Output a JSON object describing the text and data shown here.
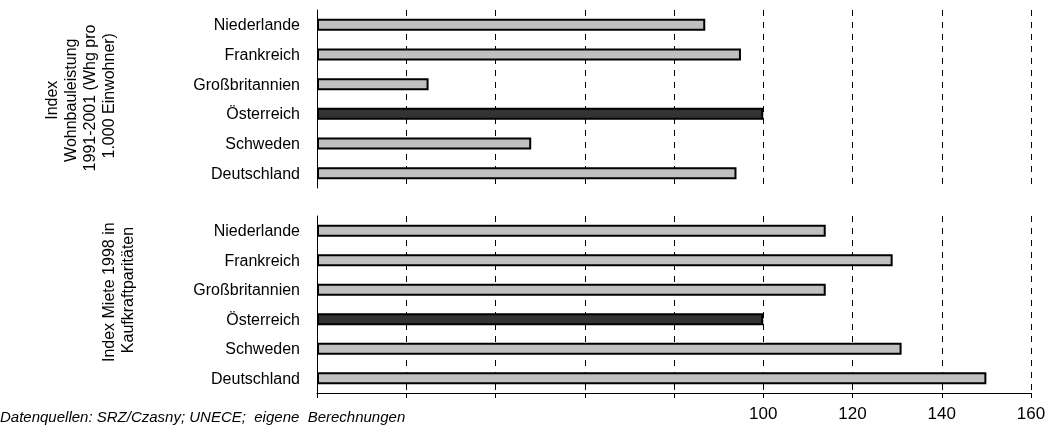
{
  "chart_data": [
    {
      "type": "bar",
      "orientation": "horizontal",
      "ylabel": "Index Wohnbauleistung 1991-2001 (Whg pro 1.000 Einwohner)",
      "categories": [
        "Niederlande",
        "Frankreich",
        "Großbritannien",
        "Österreich",
        "Schweden",
        "Deutschland"
      ],
      "values": [
        87,
        95,
        25,
        100,
        48,
        94
      ],
      "colors": [
        "#c0c0c0",
        "#c0c0c0",
        "#c0c0c0",
        "#333333",
        "#c0c0c0",
        "#c0c0c0"
      ],
      "xlim": [
        0,
        160
      ],
      "xticks": [
        {
          "value": 0,
          "label": null
        },
        {
          "value": 20,
          "label": null
        },
        {
          "value": 40,
          "label": null
        },
        {
          "value": 60,
          "label": null
        },
        {
          "value": 80,
          "label": null
        },
        {
          "value": 100,
          "label": null
        },
        {
          "value": 120,
          "label": null
        },
        {
          "value": 140,
          "label": null
        },
        {
          "value": 160,
          "label": null
        }
      ],
      "grid": "x",
      "tick_labels": "y"
    },
    {
      "type": "bar",
      "orientation": "horizontal",
      "ylabel": "Index Miete 1998 in Kaufkraftparitäten",
      "categories": [
        "Niederlande",
        "Frankreich",
        "Großbritannien",
        "Österreich",
        "Schweden",
        "Deutschland"
      ],
      "values": [
        114,
        129,
        114,
        100,
        131,
        150
      ],
      "colors": [
        "#c0c0c0",
        "#c0c0c0",
        "#c0c0c0",
        "#333333",
        "#c0c0c0",
        "#c0c0c0"
      ],
      "xlim": [
        0,
        160
      ],
      "xticks": [
        {
          "value": 0,
          "label": null
        },
        {
          "value": 20,
          "label": null
        },
        {
          "value": 40,
          "label": null
        },
        {
          "value": 60,
          "label": null
        },
        {
          "value": 80,
          "label": null
        },
        100,
        120,
        140,
        160
      ],
      "grid": "x",
      "annotations": [
        "Datenquellen: SRZ/Czasny; UNECE;  eigene  Berechnungen"
      ]
    }
  ]
}
